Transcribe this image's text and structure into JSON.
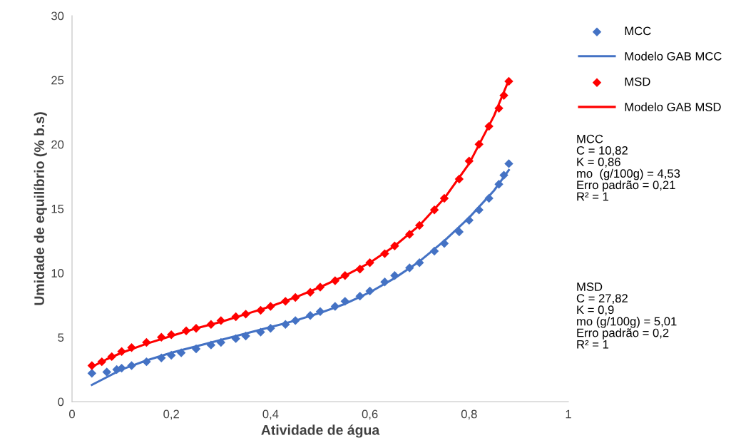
{
  "chart_data": {
    "type": "scatter",
    "xlabel": "Atividade de água",
    "ylabel": "Umidade de equilíbrio (% b.s)",
    "xlim": [
      0,
      1
    ],
    "xticks": [
      0,
      {
        "value": 0.2,
        "label": "0,2"
      },
      {
        "value": 0.4,
        "label": "0,4"
      },
      {
        "value": 0.6,
        "label": "0,6"
      },
      {
        "value": 0.8,
        "label": "0,8"
      },
      1
    ],
    "ylim": [
      0,
      30
    ],
    "yticks": [
      0,
      5,
      10,
      15,
      20,
      25,
      30
    ],
    "grid": false,
    "legend": "right",
    "series": [
      {
        "name": "MCC",
        "marker": "diamond",
        "color": "#4472c4",
        "x": [
          0.04,
          0.07,
          0.09,
          0.1,
          0.12,
          0.15,
          0.18,
          0.2,
          0.22,
          0.25,
          0.28,
          0.3,
          0.33,
          0.35,
          0.38,
          0.4,
          0.43,
          0.45,
          0.48,
          0.5,
          0.53,
          0.55,
          0.58,
          0.6,
          0.63,
          0.65,
          0.68,
          0.7,
          0.73,
          0.75,
          0.78,
          0.8,
          0.82,
          0.84,
          0.86,
          0.87,
          0.88
        ],
        "values": [
          2.2,
          2.3,
          2.5,
          2.6,
          2.8,
          3.1,
          3.4,
          3.6,
          3.8,
          4.1,
          4.4,
          4.6,
          4.9,
          5.1,
          5.4,
          5.7,
          6.0,
          6.3,
          6.7,
          7.0,
          7.4,
          7.8,
          8.2,
          8.6,
          9.3,
          9.8,
          10.4,
          10.8,
          11.7,
          12.3,
          13.2,
          14.1,
          14.9,
          15.8,
          16.9,
          17.6,
          18.5
        ]
      },
      {
        "name": "Modelo GAB MCC",
        "type": "line",
        "marker": "none",
        "color": "#4472c4",
        "x": [
          0.04,
          0.07,
          0.1,
          0.15,
          0.2,
          0.25,
          0.3,
          0.35,
          0.4,
          0.45,
          0.5,
          0.55,
          0.6,
          0.65,
          0.7,
          0.75,
          0.8,
          0.85,
          0.88
        ],
        "values": [
          1.3,
          1.9,
          2.5,
          3.2,
          3.8,
          4.3,
          4.8,
          5.3,
          5.8,
          6.3,
          6.9,
          7.6,
          8.5,
          9.6,
          10.9,
          12.5,
          14.3,
          16.4,
          18.0
        ]
      },
      {
        "name": "MSD",
        "marker": "diamond",
        "color": "#ff0000",
        "x": [
          0.04,
          0.06,
          0.08,
          0.1,
          0.12,
          0.15,
          0.18,
          0.2,
          0.23,
          0.25,
          0.28,
          0.3,
          0.33,
          0.35,
          0.38,
          0.4,
          0.43,
          0.45,
          0.48,
          0.5,
          0.53,
          0.55,
          0.58,
          0.6,
          0.63,
          0.65,
          0.68,
          0.7,
          0.73,
          0.75,
          0.78,
          0.8,
          0.82,
          0.84,
          0.86,
          0.87,
          0.88
        ],
        "values": [
          2.8,
          3.1,
          3.5,
          3.9,
          4.2,
          4.6,
          5.0,
          5.2,
          5.5,
          5.7,
          6.0,
          6.3,
          6.6,
          6.8,
          7.1,
          7.4,
          7.8,
          8.1,
          8.5,
          8.9,
          9.4,
          9.8,
          10.3,
          10.8,
          11.5,
          12.1,
          13.0,
          13.7,
          14.9,
          15.8,
          17.3,
          18.7,
          20.0,
          21.4,
          22.8,
          23.8,
          24.9
        ]
      },
      {
        "name": "Modelo GAB MSD",
        "type": "line",
        "marker": "none",
        "color": "#ff0000",
        "x": [
          0.04,
          0.07,
          0.1,
          0.15,
          0.2,
          0.25,
          0.3,
          0.35,
          0.4,
          0.45,
          0.5,
          0.55,
          0.6,
          0.65,
          0.7,
          0.75,
          0.8,
          0.85,
          0.88
        ],
        "values": [
          2.7,
          3.3,
          3.8,
          4.5,
          5.1,
          5.7,
          6.2,
          6.8,
          7.4,
          8.1,
          8.9,
          9.8,
          10.8,
          12.1,
          13.7,
          15.8,
          18.5,
          22.2,
          25.0
        ]
      }
    ],
    "annotations": [
      "MCC\nC = 10,82\nK = 0,86\nmo  (g/100g) = 4,53\nErro padrão = 0,21\nR² = 1",
      "MSD\nC = 27,82\nK = 0,9\nmo (g/100g) = 5,01\nErro padrão = 0,2\nR² = 1"
    ]
  }
}
